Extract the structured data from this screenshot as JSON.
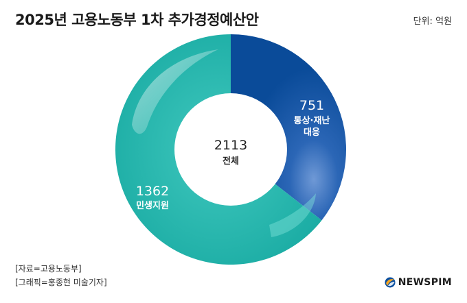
{
  "header": {
    "title": "2025년 고용노동부 1차 추가경정예산안",
    "unit": "단위: 억원"
  },
  "chart_data": {
    "type": "pie",
    "variant": "donut",
    "title": "2025년 고용노동부 1차 추가경정예산안",
    "unit": "억원",
    "total": {
      "value": "2113",
      "label": "전체"
    },
    "slices": [
      {
        "name": "통상·재난 대응",
        "name_lines": [
          "통상·재난",
          "대응"
        ],
        "value": 751,
        "color": "#0b4f9f"
      },
      {
        "name": "민생지원",
        "name_lines": [
          "민생지원"
        ],
        "value": 1362,
        "color": "#20b2aa"
      }
    ]
  },
  "footer": {
    "source": "[자료=고용노동부]",
    "credit": "[그래픽=홍종현 미술기자]",
    "logo_text": "NEWSPIM"
  }
}
